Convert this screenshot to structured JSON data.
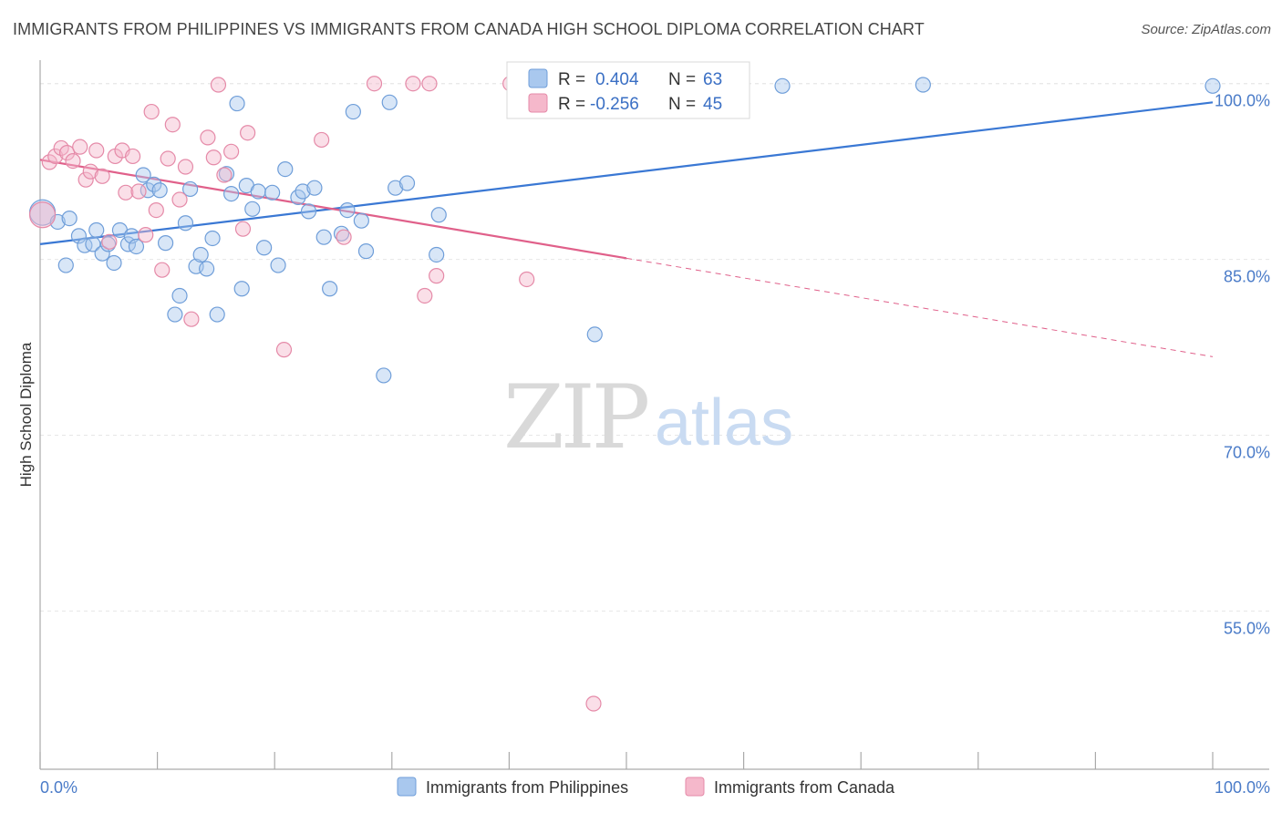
{
  "title": "IMMIGRANTS FROM PHILIPPINES VS IMMIGRANTS FROM CANADA HIGH SCHOOL DIPLOMA CORRELATION CHART",
  "source": "Source: ZipAtlas.com",
  "watermark": {
    "zip": "ZIP",
    "atlas": "atlas"
  },
  "colors": {
    "blue": "#3a78d4",
    "blue_fill": "#a9c8ee",
    "pink": "#e0608a",
    "pink_fill": "#f5b8cb",
    "axis_text": "#4a7bc8"
  },
  "legend_box": {
    "rows": [
      {
        "r_label": "R =",
        "r_value": "0.404",
        "n_label": "N =",
        "n_value": "63",
        "color": "blue"
      },
      {
        "r_label": "R =",
        "r_value": "-0.256",
        "n_label": "N =",
        "n_value": "45",
        "color": "pink"
      }
    ]
  },
  "chart_data": {
    "type": "scatter",
    "title": "IMMIGRANTS FROM PHILIPPINES VS IMMIGRANTS FROM CANADA HIGH SCHOOL DIPLOMA CORRELATION CHART",
    "xlabel": "",
    "ylabel": "High School Diploma",
    "xlim": [
      0,
      100
    ],
    "ylim": [
      41.5,
      102
    ],
    "x_tick_labels": [
      "0.0%",
      "100.0%"
    ],
    "y_ticks": [
      55,
      70,
      85,
      100
    ],
    "y_tick_labels": [
      "55.0%",
      "70.0%",
      "85.0%",
      "100.0%"
    ],
    "grid": true,
    "legend_position": "bottom",
    "series": [
      {
        "name": "Immigrants from Philippines",
        "color": "blue",
        "r": 0.404,
        "n": 63,
        "trend": {
          "x": [
            0,
            100
          ],
          "y": [
            86.3,
            98.4
          ],
          "dashed_from": null
        },
        "points": [
          [
            0.2,
            89.0
          ],
          [
            1.5,
            88.2
          ],
          [
            2.2,
            84.5
          ],
          [
            2.5,
            88.5
          ],
          [
            3.3,
            87.0
          ],
          [
            3.8,
            86.2
          ],
          [
            4.5,
            86.3
          ],
          [
            4.8,
            87.5
          ],
          [
            5.3,
            85.5
          ],
          [
            5.8,
            86.3
          ],
          [
            6.3,
            84.7
          ],
          [
            6.8,
            87.5
          ],
          [
            7.5,
            86.3
          ],
          [
            7.8,
            87.0
          ],
          [
            8.2,
            86.1
          ],
          [
            8.8,
            92.2
          ],
          [
            9.2,
            90.9
          ],
          [
            9.7,
            91.4
          ],
          [
            10.2,
            90.9
          ],
          [
            10.7,
            86.4
          ],
          [
            11.5,
            80.3
          ],
          [
            11.9,
            81.9
          ],
          [
            12.4,
            88.1
          ],
          [
            12.8,
            91.0
          ],
          [
            13.3,
            84.4
          ],
          [
            13.7,
            85.4
          ],
          [
            14.2,
            84.2
          ],
          [
            14.7,
            86.8
          ],
          [
            15.1,
            80.3
          ],
          [
            15.9,
            92.3
          ],
          [
            16.3,
            90.6
          ],
          [
            16.8,
            98.3
          ],
          [
            17.2,
            82.5
          ],
          [
            17.6,
            91.3
          ],
          [
            18.1,
            89.3
          ],
          [
            18.6,
            90.8
          ],
          [
            19.1,
            86.0
          ],
          [
            19.8,
            90.7
          ],
          [
            20.3,
            84.5
          ],
          [
            20.9,
            92.7
          ],
          [
            22.0,
            90.3
          ],
          [
            22.4,
            90.8
          ],
          [
            22.9,
            89.1
          ],
          [
            23.4,
            91.1
          ],
          [
            24.2,
            86.9
          ],
          [
            24.7,
            82.5
          ],
          [
            25.7,
            87.2
          ],
          [
            26.2,
            89.2
          ],
          [
            26.7,
            97.6
          ],
          [
            27.4,
            88.3
          ],
          [
            27.8,
            85.7
          ],
          [
            29.3,
            75.1
          ],
          [
            29.8,
            98.4
          ],
          [
            30.3,
            91.1
          ],
          [
            31.3,
            91.5
          ],
          [
            34.0,
            88.8
          ],
          [
            33.8,
            85.4
          ],
          [
            47.3,
            78.6
          ],
          [
            58.0,
            99.8
          ],
          [
            59.7,
            100.0
          ],
          [
            63.3,
            99.8
          ],
          [
            75.3,
            99.9
          ],
          [
            100.0,
            99.8
          ]
        ]
      },
      {
        "name": "Immigrants from Canada",
        "color": "pink",
        "r": -0.256,
        "n": 45,
        "trend": {
          "x": [
            0,
            100
          ],
          "y": [
            93.5,
            76.7
          ],
          "dashed_from": 50
        },
        "points": [
          [
            0.2,
            88.8
          ],
          [
            0.8,
            93.3
          ],
          [
            1.3,
            93.8
          ],
          [
            1.8,
            94.5
          ],
          [
            2.3,
            94.1
          ],
          [
            2.8,
            93.4
          ],
          [
            3.4,
            94.6
          ],
          [
            3.9,
            91.8
          ],
          [
            4.3,
            92.5
          ],
          [
            4.8,
            94.3
          ],
          [
            5.3,
            92.1
          ],
          [
            5.9,
            86.5
          ],
          [
            6.4,
            93.8
          ],
          [
            7.0,
            94.3
          ],
          [
            7.3,
            90.7
          ],
          [
            7.9,
            93.8
          ],
          [
            8.4,
            90.8
          ],
          [
            9.0,
            87.1
          ],
          [
            9.5,
            97.6
          ],
          [
            9.9,
            89.2
          ],
          [
            10.4,
            84.1
          ],
          [
            10.9,
            93.6
          ],
          [
            11.3,
            96.5
          ],
          [
            11.9,
            90.1
          ],
          [
            12.4,
            92.9
          ],
          [
            12.9,
            79.9
          ],
          [
            14.3,
            95.4
          ],
          [
            14.8,
            93.7
          ],
          [
            15.2,
            99.9
          ],
          [
            15.7,
            92.2
          ],
          [
            16.3,
            94.2
          ],
          [
            17.3,
            87.6
          ],
          [
            17.7,
            95.8
          ],
          [
            20.8,
            77.3
          ],
          [
            24.0,
            95.2
          ],
          [
            25.9,
            86.9
          ],
          [
            28.5,
            100.0
          ],
          [
            31.8,
            100.0
          ],
          [
            32.8,
            81.9
          ],
          [
            33.2,
            100.0
          ],
          [
            33.8,
            83.6
          ],
          [
            40.1,
            100.0
          ],
          [
            41.5,
            83.3
          ],
          [
            47.2,
            47.1
          ],
          [
            59.3,
            100.0
          ]
        ]
      }
    ]
  }
}
